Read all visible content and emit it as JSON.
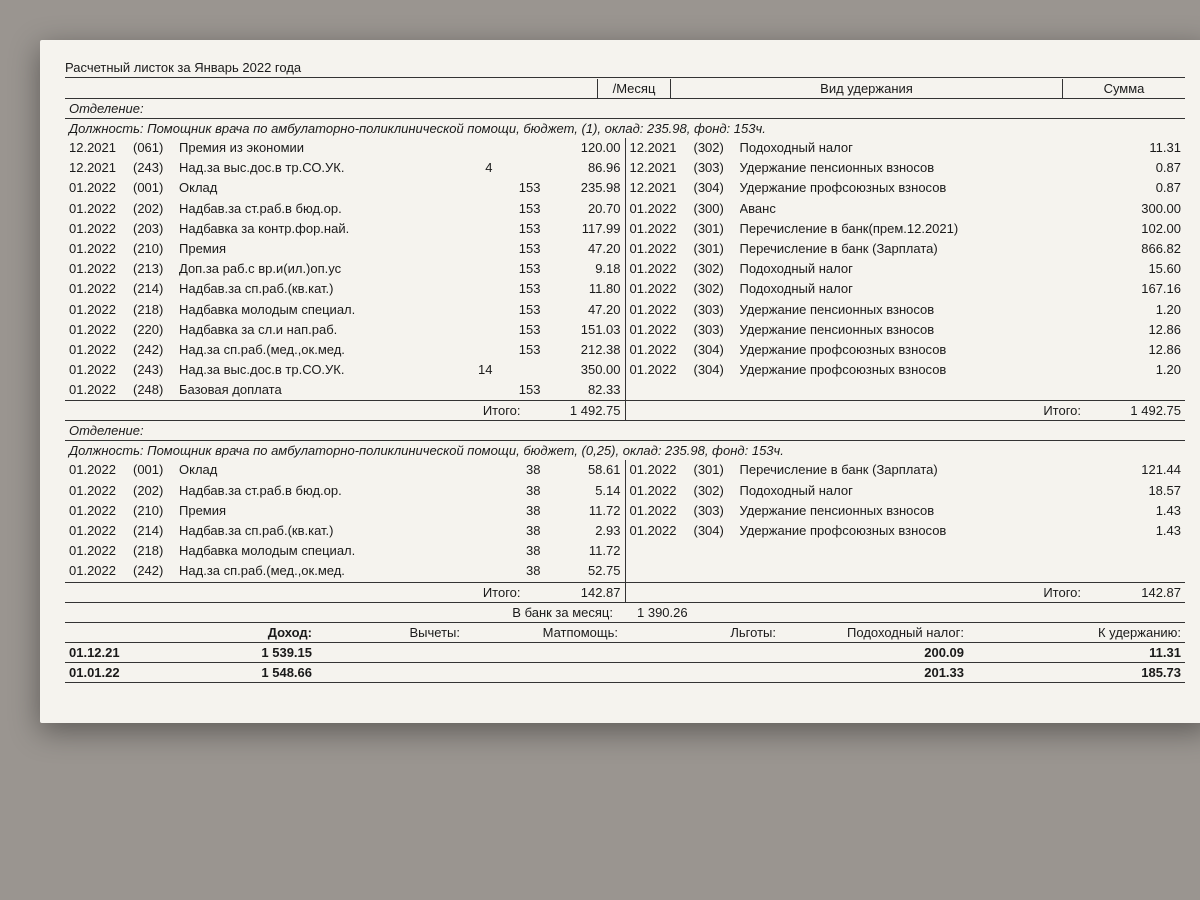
{
  "title": "Расчетный листок за Январь 2022 года",
  "header": {
    "month": "/Месяц",
    "deduction_type": "Вид удержания",
    "sum": "Сумма"
  },
  "section1": {
    "department": "Отделение:",
    "position": "Должность: Помощник врача по амбулаторно-поликлинической помощи, бюджет, (1), оклад: 235.98, фонд: 153ч.",
    "accruals": [
      {
        "date": "12.2021",
        "code": "(061)",
        "desc": "Премия из экономии",
        "days": "",
        "hours": "",
        "amount": "120.00"
      },
      {
        "date": "12.2021",
        "code": "(243)",
        "desc": "Над.за выс.дос.в тр.СО.УК.",
        "days": "4",
        "hours": "",
        "amount": "86.96"
      },
      {
        "date": "01.2022",
        "code": "(001)",
        "desc": "Оклад",
        "days": "",
        "hours": "153",
        "amount": "235.98"
      },
      {
        "date": "01.2022",
        "code": "(202)",
        "desc": "Надбав.за ст.раб.в бюд.ор.",
        "days": "",
        "hours": "153",
        "amount": "20.70"
      },
      {
        "date": "01.2022",
        "code": "(203)",
        "desc": "Надбавка за контр.фор.най.",
        "days": "",
        "hours": "153",
        "amount": "117.99"
      },
      {
        "date": "01.2022",
        "code": "(210)",
        "desc": "Премия",
        "days": "",
        "hours": "153",
        "amount": "47.20"
      },
      {
        "date": "01.2022",
        "code": "(213)",
        "desc": "Доп.за раб.с вр.и(ил.)оп.ус",
        "days": "",
        "hours": "153",
        "amount": "9.18"
      },
      {
        "date": "01.2022",
        "code": "(214)",
        "desc": "Надбав.за сп.раб.(кв.кат.)",
        "days": "",
        "hours": "153",
        "amount": "11.80"
      },
      {
        "date": "01.2022",
        "code": "(218)",
        "desc": "Надбавка молодым специал.",
        "days": "",
        "hours": "153",
        "amount": "47.20"
      },
      {
        "date": "01.2022",
        "code": "(220)",
        "desc": "Надбавка за сл.и нап.раб.",
        "days": "",
        "hours": "153",
        "amount": "151.03"
      },
      {
        "date": "01.2022",
        "code": "(242)",
        "desc": "Над.за сп.раб.(мед.,ок.мед.",
        "days": "",
        "hours": "153",
        "amount": "212.38"
      },
      {
        "date": "01.2022",
        "code": "(243)",
        "desc": "Над.за выс.дос.в тр.СО.УК.",
        "days": "14",
        "hours": "",
        "amount": "350.00"
      },
      {
        "date": "01.2022",
        "code": "(248)",
        "desc": "Базовая доплата",
        "days": "",
        "hours": "153",
        "amount": "82.33"
      }
    ],
    "deductions": [
      {
        "date": "12.2021",
        "code": "(302)",
        "desc": "Подоходный налог",
        "amount": "11.31"
      },
      {
        "date": "12.2021",
        "code": "(303)",
        "desc": "Удержание пенсионных взносов",
        "amount": "0.87"
      },
      {
        "date": "12.2021",
        "code": "(304)",
        "desc": "Удержание профсоюзных взносов",
        "amount": "0.87"
      },
      {
        "date": "01.2022",
        "code": "(300)",
        "desc": "Аванс",
        "amount": "300.00"
      },
      {
        "date": "01.2022",
        "code": "(301)",
        "desc": "Перечисление в банк(прем.12.2021)",
        "amount": "102.00"
      },
      {
        "date": "01.2022",
        "code": "(301)",
        "desc": "Перечисление в банк (Зарплата)",
        "amount": "866.82"
      },
      {
        "date": "01.2022",
        "code": "(302)",
        "desc": "Подоходный налог",
        "amount": "15.60"
      },
      {
        "date": "01.2022",
        "code": "(302)",
        "desc": "Подоходный налог",
        "amount": "167.16"
      },
      {
        "date": "01.2022",
        "code": "(303)",
        "desc": "Удержание пенсионных взносов",
        "amount": "1.20"
      },
      {
        "date": "01.2022",
        "code": "(303)",
        "desc": "Удержание пенсионных взносов",
        "amount": "12.86"
      },
      {
        "date": "01.2022",
        "code": "(304)",
        "desc": "Удержание профсоюзных взносов",
        "amount": "12.86"
      },
      {
        "date": "01.2022",
        "code": "(304)",
        "desc": "Удержание профсоюзных взносов",
        "amount": "1.20"
      }
    ],
    "total_label": "Итого:",
    "total_accruals": "1 492.75",
    "total_deductions": "1 492.75"
  },
  "section2": {
    "department": "Отделение:",
    "position": "Должность: Помощник врача по амбулаторно-поликлинической помощи, бюджет, (0,25), оклад: 235.98, фонд: 153ч.",
    "accruals": [
      {
        "date": "01.2022",
        "code": "(001)",
        "desc": "Оклад",
        "days": "",
        "hours": "38",
        "amount": "58.61"
      },
      {
        "date": "01.2022",
        "code": "(202)",
        "desc": "Надбав.за ст.раб.в бюд.ор.",
        "days": "",
        "hours": "38",
        "amount": "5.14"
      },
      {
        "date": "01.2022",
        "code": "(210)",
        "desc": "Премия",
        "days": "",
        "hours": "38",
        "amount": "11.72"
      },
      {
        "date": "01.2022",
        "code": "(214)",
        "desc": "Надбав.за сп.раб.(кв.кат.)",
        "days": "",
        "hours": "38",
        "amount": "2.93"
      },
      {
        "date": "01.2022",
        "code": "(218)",
        "desc": "Надбавка молодым специал.",
        "days": "",
        "hours": "38",
        "amount": "11.72"
      },
      {
        "date": "01.2022",
        "code": "(242)",
        "desc": "Над.за сп.раб.(мед.,ок.мед.",
        "days": "",
        "hours": "38",
        "amount": "52.75"
      }
    ],
    "deductions": [
      {
        "date": "01.2022",
        "code": "(301)",
        "desc": "Перечисление в банк (Зарплата)",
        "amount": "121.44"
      },
      {
        "date": "01.2022",
        "code": "(302)",
        "desc": "Подоходный налог",
        "amount": "18.57"
      },
      {
        "date": "01.2022",
        "code": "(303)",
        "desc": "Удержание пенсионных взносов",
        "amount": "1.43"
      },
      {
        "date": "01.2022",
        "code": "(304)",
        "desc": "Удержание профсоюзных взносов",
        "amount": "1.43"
      }
    ],
    "total_label": "Итого:",
    "total_accruals": "142.87",
    "total_deductions": "142.87"
  },
  "bank": {
    "label": "В банк за месяц:",
    "amount": "1 390.26"
  },
  "summary": {
    "headers": {
      "date": "",
      "income": "Доход:",
      "deductions": "Вычеты:",
      "help": "Матпомощь:",
      "benefits": "Льготы:",
      "tax": "Подоходный налог:",
      "hold": "К удержанию:"
    },
    "rows": [
      {
        "date": "01.12.21",
        "income": "1 539.15",
        "deductions": "",
        "help": "",
        "benefits": "",
        "tax": "200.09",
        "hold": "11.31"
      },
      {
        "date": "01.01.22",
        "income": "1 548.66",
        "deductions": "",
        "help": "",
        "benefits": "",
        "tax": "201.33",
        "hold": "185.73"
      }
    ]
  }
}
